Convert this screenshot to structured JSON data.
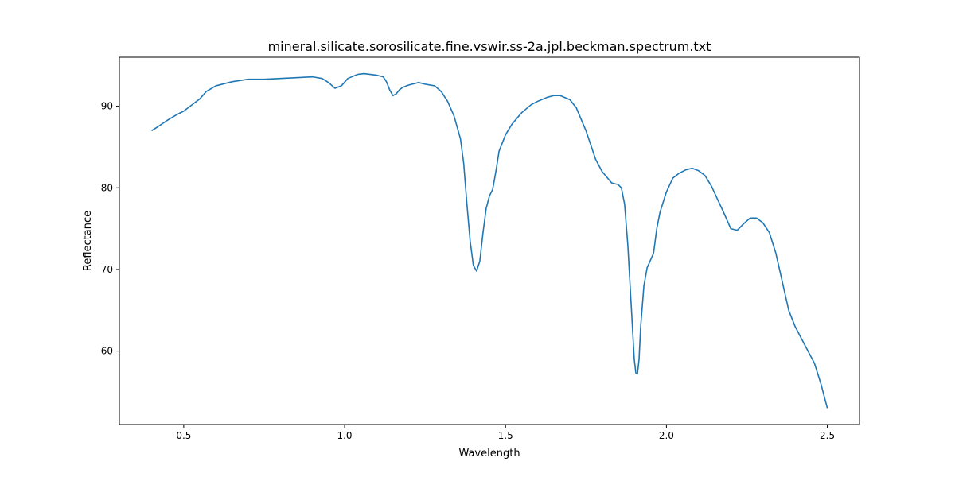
{
  "chart_data": {
    "type": "line",
    "title": "mineral.silicate.sorosilicate.fine.vswir.ss-2a.jpl.beckman.spectrum.txt",
    "xlabel": "Wavelength",
    "ylabel": "Reflectance",
    "xlim": [
      0.3,
      2.6
    ],
    "ylim": [
      51.0,
      96.0
    ],
    "xticks": [
      0.5,
      1.0,
      1.5,
      2.0,
      2.5
    ],
    "xtick_labels": [
      "0.5",
      "1.0",
      "1.5",
      "2.0",
      "2.5"
    ],
    "yticks": [
      60,
      70,
      80,
      90
    ],
    "ytick_labels": [
      "60",
      "70",
      "80",
      "90"
    ],
    "grid": false,
    "line_color": "#1f77b4",
    "series": [
      {
        "x": [
          0.4,
          0.42,
          0.45,
          0.48,
          0.5,
          0.53,
          0.55,
          0.57,
          0.6,
          0.65,
          0.7,
          0.75,
          0.8,
          0.85,
          0.9,
          0.93,
          0.95,
          0.97,
          0.99,
          1.01,
          1.04,
          1.06,
          1.08,
          1.1,
          1.12,
          1.13,
          1.14,
          1.15,
          1.16,
          1.17,
          1.18,
          1.2,
          1.23,
          1.25,
          1.28,
          1.3,
          1.32,
          1.34,
          1.36,
          1.37,
          1.38,
          1.39,
          1.4,
          1.41,
          1.42,
          1.43,
          1.44,
          1.45,
          1.46,
          1.47,
          1.48,
          1.5,
          1.52,
          1.55,
          1.58,
          1.6,
          1.63,
          1.65,
          1.67,
          1.7,
          1.72,
          1.75,
          1.78,
          1.8,
          1.83,
          1.85,
          1.86,
          1.87,
          1.88,
          1.89,
          1.9,
          1.905,
          1.91,
          1.915,
          1.92,
          1.93,
          1.94,
          1.96,
          1.97,
          1.98,
          2.0,
          2.02,
          2.04,
          2.06,
          2.08,
          2.1,
          2.12,
          2.14,
          2.16,
          2.18,
          2.2,
          2.22,
          2.24,
          2.26,
          2.28,
          2.3,
          2.32,
          2.34,
          2.36,
          2.38,
          2.4,
          2.42,
          2.44,
          2.46,
          2.48,
          2.5
        ],
        "y": [
          87.0,
          87.5,
          88.3,
          89.0,
          89.4,
          90.3,
          90.9,
          91.8,
          92.5,
          93.0,
          93.3,
          93.3,
          93.4,
          93.5,
          93.6,
          93.4,
          92.9,
          92.2,
          92.5,
          93.4,
          93.9,
          94.0,
          93.9,
          93.8,
          93.6,
          93.0,
          92.0,
          91.3,
          91.5,
          92.0,
          92.3,
          92.6,
          92.9,
          92.7,
          92.5,
          91.8,
          90.6,
          88.8,
          86.0,
          83.0,
          78.0,
          73.5,
          70.5,
          69.8,
          71.0,
          74.5,
          77.5,
          79.0,
          79.8,
          82.0,
          84.5,
          86.5,
          87.8,
          89.2,
          90.2,
          90.6,
          91.1,
          91.3,
          91.3,
          90.8,
          89.8,
          87.0,
          83.5,
          82.0,
          80.6,
          80.4,
          80.0,
          78.0,
          73.0,
          66.0,
          59.0,
          57.3,
          57.2,
          59.0,
          63.0,
          68.0,
          70.2,
          72.0,
          75.0,
          77.0,
          79.5,
          81.2,
          81.8,
          82.2,
          82.4,
          82.1,
          81.5,
          80.2,
          78.5,
          76.8,
          75.0,
          74.8,
          75.6,
          76.3,
          76.3,
          75.7,
          74.5,
          72.0,
          68.5,
          65.0,
          63.0,
          61.5,
          60.0,
          58.5,
          56.0,
          53.0
        ]
      }
    ]
  }
}
